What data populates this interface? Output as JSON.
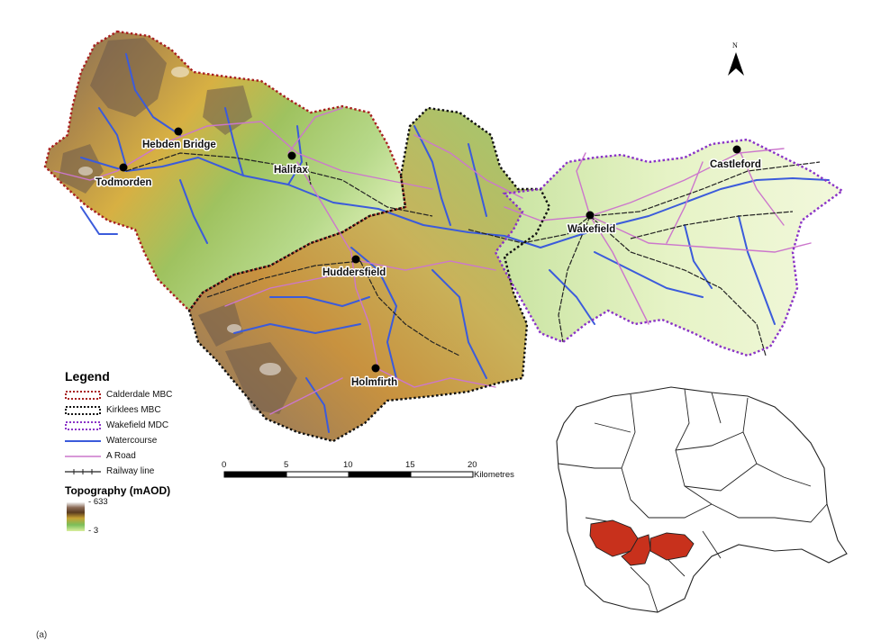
{
  "towns": [
    {
      "name": "Hebden Bridge"
    },
    {
      "name": "Todmorden"
    },
    {
      "name": "Halifax"
    },
    {
      "name": "Huddersfield"
    },
    {
      "name": "Holmfirth"
    },
    {
      "name": "Wakefield"
    },
    {
      "name": "Castleford"
    }
  ],
  "north_arrow": {
    "label": "N"
  },
  "legend": {
    "title": "Legend",
    "items": [
      {
        "label": "Calderdale MBC",
        "color": "#a82020"
      },
      {
        "label": "Kirklees MBC",
        "color": "#111111"
      },
      {
        "label": "Wakefield MDC",
        "color": "#8a33c7"
      },
      {
        "label": "Watercourse",
        "color": "#3b5bdb"
      },
      {
        "label": "A Road",
        "color": "#cc77cc"
      },
      {
        "label": "Railway line",
        "color": "#222222"
      }
    ],
    "topography_title": "Topography (mAOD)",
    "topo_max": "633",
    "topo_min": "3"
  },
  "scale_bar": {
    "ticks": [
      "0",
      "5",
      "10",
      "15",
      "20"
    ],
    "unit": "Kilometres"
  },
  "inset": {
    "highlight_color": "#c8311c"
  },
  "caption": "(a)"
}
